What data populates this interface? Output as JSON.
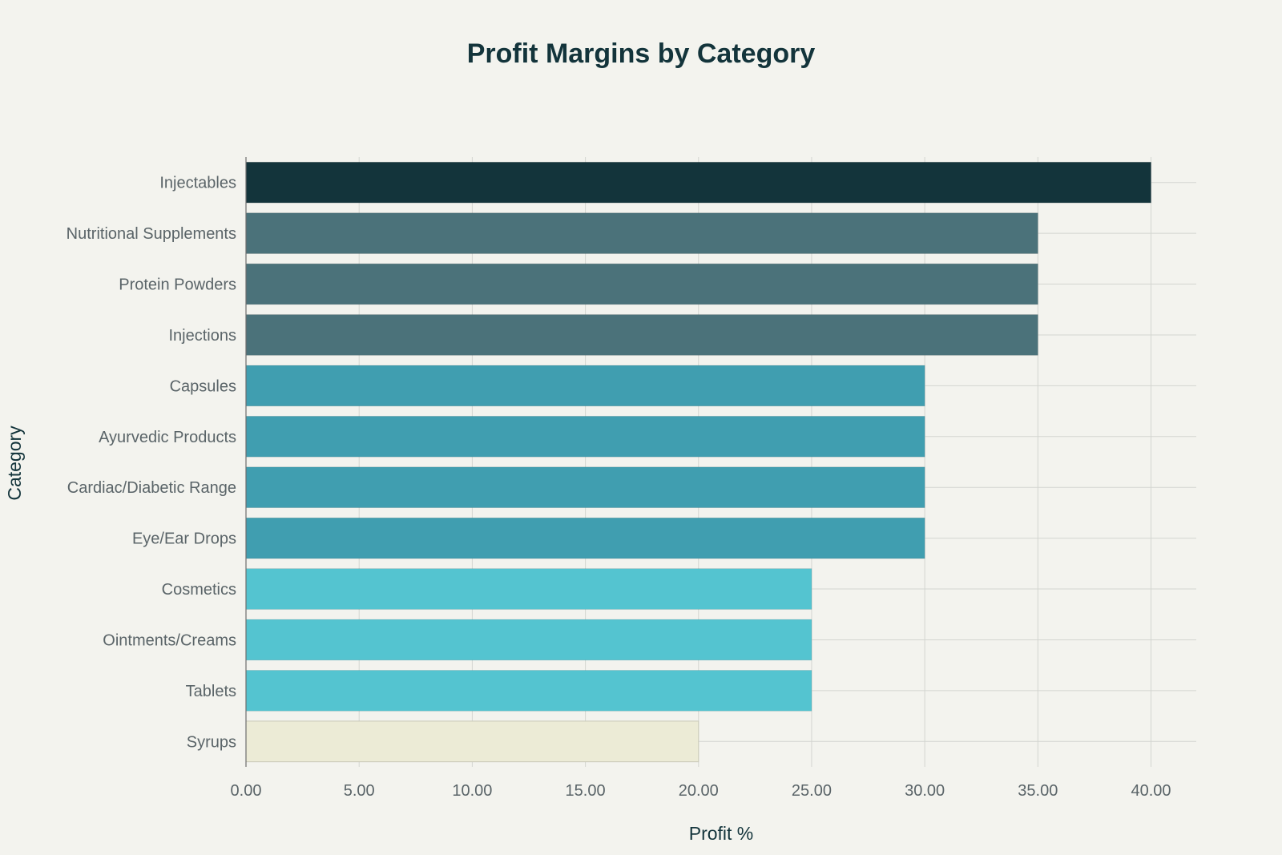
{
  "chart_data": {
    "type": "bar",
    "orientation": "horizontal",
    "title": "Profit Margins by Category",
    "xlabel": "Profit %",
    "ylabel": "Category",
    "xlim": [
      0,
      42
    ],
    "xticks": [
      "0.00",
      "5.00",
      "10.00",
      "15.00",
      "20.00",
      "25.00",
      "30.00",
      "35.00",
      "40.00"
    ],
    "xtick_values": [
      0,
      5,
      10,
      15,
      20,
      25,
      30,
      35,
      40
    ],
    "grid": true,
    "categories": [
      "Injectables",
      "Nutritional Supplements",
      "Protein Powders",
      "Injections",
      "Capsules",
      "Ayurvedic Products",
      "Cardiac/Diabetic Range",
      "Eye/Ear Drops",
      "Cosmetics",
      "Ointments/Creams",
      "Tablets",
      "Syrups"
    ],
    "values": [
      40,
      35,
      35,
      35,
      30,
      30,
      30,
      30,
      25,
      25,
      25,
      20
    ],
    "colors": [
      "#13343b",
      "#4b727a",
      "#4b727a",
      "#4b727a",
      "#409eb0",
      "#409eb0",
      "#409eb0",
      "#409eb0",
      "#54c4d0",
      "#54c4d0",
      "#54c4d0",
      "#ecebd6"
    ]
  }
}
